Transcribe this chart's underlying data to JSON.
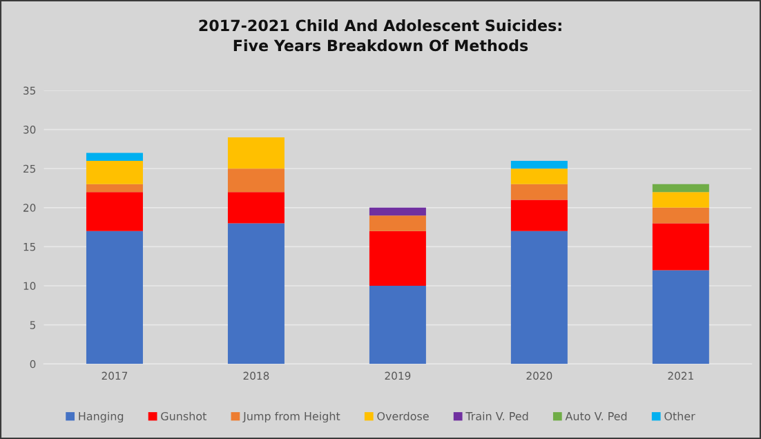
{
  "chart_data": {
    "type": "bar",
    "title": "2017-2021 Child And Adolescent Suicides:\nFive Years Breakdown Of Methods",
    "categories": [
      "2017",
      "2018",
      "2019",
      "2020",
      "2021"
    ],
    "series": [
      {
        "name": "Hanging",
        "color": "#4472c4",
        "values": [
          17,
          18,
          10,
          17,
          12
        ]
      },
      {
        "name": "Gunshot",
        "color": "#ff0000",
        "values": [
          5,
          4,
          7,
          4,
          6
        ]
      },
      {
        "name": "Jump from Height",
        "color": "#ed7d31",
        "values": [
          1,
          3,
          2,
          2,
          2
        ]
      },
      {
        "name": "Overdose",
        "color": "#ffc000",
        "values": [
          3,
          4,
          null,
          2,
          2
        ]
      },
      {
        "name": "Train V. Ped",
        "color": "#7030a0",
        "values": [
          null,
          null,
          1,
          null,
          null
        ]
      },
      {
        "name": "Auto V. Ped",
        "color": "#70ad47",
        "values": [
          null,
          null,
          null,
          null,
          1
        ]
      },
      {
        "name": "Other",
        "color": "#00b0f0",
        "values": [
          1,
          null,
          null,
          1,
          null
        ]
      }
    ],
    "stacked": true,
    "ylim": [
      0,
      35
    ],
    "yticks": [
      0,
      5,
      10,
      15,
      20,
      25,
      30,
      35
    ],
    "grid": "y",
    "legend": "bottom"
  }
}
